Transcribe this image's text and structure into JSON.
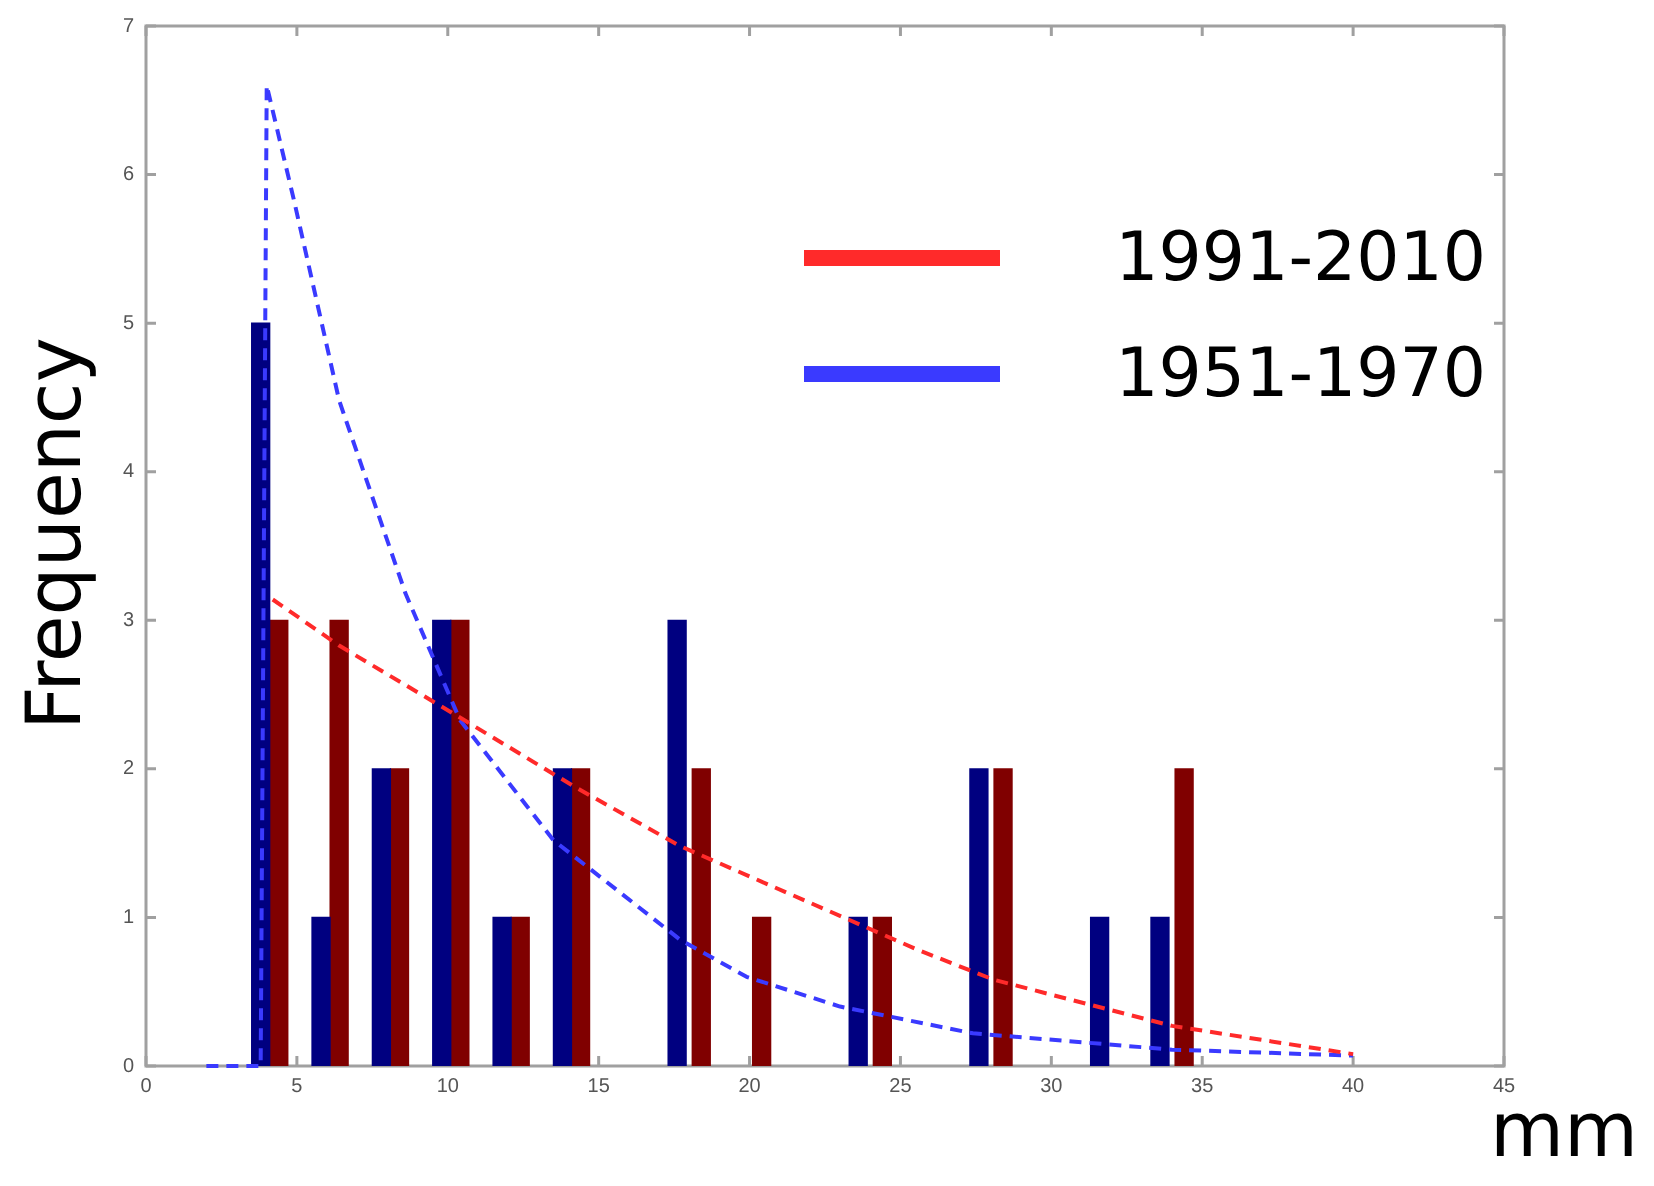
{
  "chart_data": {
    "type": "bar",
    "xlabel": "mm",
    "ylabel": "Frequency",
    "xlim": [
      0,
      45
    ],
    "xticks": [
      0,
      5,
      10,
      15,
      20,
      25,
      30,
      35,
      40,
      45
    ],
    "ylim": [
      0,
      7
    ],
    "yticks": [
      0,
      1,
      2,
      3,
      4,
      5,
      6,
      7
    ],
    "grid": false,
    "legend": "top right",
    "series": [
      {
        "name": "1991-2010",
        "type": "line",
        "line_style": "dashed",
        "color": "#ff2a2a",
        "x": [
          4.2,
          6.4,
          10.2,
          14.2,
          17.7,
          25.6,
          28.1,
          34,
          40
        ],
        "values": [
          3.14,
          2.83,
          2.37,
          1.88,
          1.48,
          0.78,
          0.58,
          0.27,
          0.08
        ]
      },
      {
        "name": "1951-1970",
        "type": "line",
        "line_style": "dashed",
        "color": "#3a3aff",
        "x": [
          2,
          3.8,
          4,
          4.9,
          6.4,
          7.55,
          8.6,
          10.4,
          13.5,
          17.7,
          19.9,
          23,
          27.4,
          34,
          40
        ],
        "values": [
          0,
          0,
          6.6,
          5.83,
          4.48,
          3.8,
          3.18,
          2.33,
          1.52,
          0.85,
          0.6,
          0.4,
          0.22,
          0.11,
          0.07
        ]
      },
      {
        "color": "#000080",
        "x": [
          3.8,
          5.8,
          7.8,
          9.8,
          11.8,
          13.8,
          17.6,
          23.6,
          27.6,
          31.6,
          33.6
        ],
        "values": [
          5,
          1,
          2,
          3,
          1,
          2,
          3,
          1,
          2,
          1,
          1
        ]
      },
      {
        "color": "#800000",
        "x": [
          4.4,
          6.4,
          8.4,
          10.4,
          12.4,
          14.4,
          18.4,
          20.4,
          24.4,
          28.4,
          34.4
        ],
        "values": [
          3,
          3,
          2,
          3,
          1,
          2,
          2,
          1,
          1,
          2,
          2
        ]
      }
    ]
  }
}
